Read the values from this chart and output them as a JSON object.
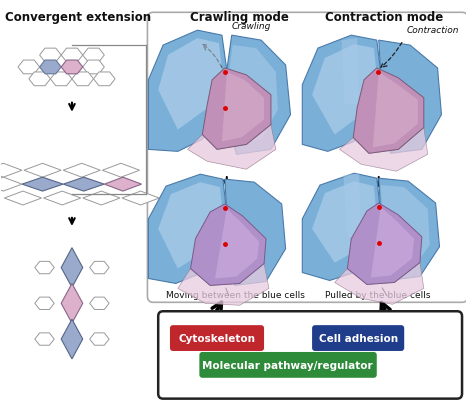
{
  "section_titles": {
    "left": "Convergent extension",
    "middle": "Crawling mode",
    "right": "Contraction mode"
  },
  "labels": {
    "crawling": "Crawling",
    "contraction": "Contraction",
    "moving": "Moving between the blue cells",
    "pulled": "Pulled by the blue cells"
  },
  "buttons": {
    "cytoskeleton": {
      "text": "Cytoskeleton",
      "color": "#c0272d",
      "text_color": "#ffffff"
    },
    "cell_adhesion": {
      "text": "Cell adhesion",
      "color": "#1f3d8a",
      "text_color": "#ffffff"
    },
    "molecular": {
      "text": "Molecular pathway/regulator",
      "color": "#2e8b3a",
      "text_color": "#ffffff"
    }
  },
  "colors": {
    "blue_cell": "#7ab0d8",
    "blue_highlight": "#c0d8ee",
    "blue_dark": "#4a7aaa",
    "pink_cell": "#c090b8",
    "pink_cell2": "#e0b8d0",
    "pink_highlight": "#e8cce0",
    "hex_blue": "#99aacc",
    "hex_pink": "#ddb0cc",
    "hex_outline": "#888899",
    "background": "#ffffff",
    "box_border": "#222222"
  },
  "font_sizes": {
    "section_title": 8.5,
    "label_small": 6.5,
    "button_text": 7.5
  }
}
